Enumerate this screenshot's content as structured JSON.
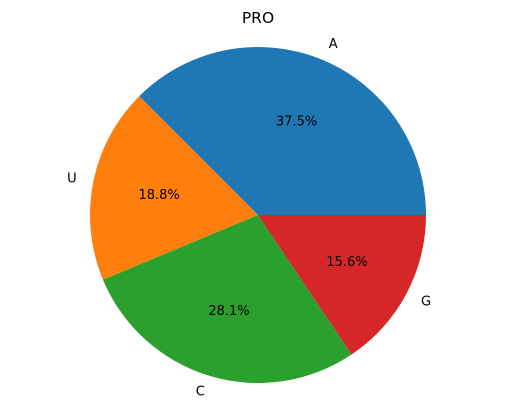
{
  "chart_data": {
    "type": "pie",
    "title": "PRO",
    "categories": [
      "A",
      "U",
      "C",
      "G"
    ],
    "values": [
      37.5,
      18.8,
      28.1,
      15.6
    ],
    "percent_labels": [
      "37.5%",
      "18.8%",
      "28.1%",
      "15.6%"
    ],
    "colors": [
      "#1f77b4",
      "#ff7f0e",
      "#2ca02c",
      "#d62728"
    ],
    "start_angle_deg": 0,
    "direction": "counterclockwise",
    "legend": "none"
  }
}
